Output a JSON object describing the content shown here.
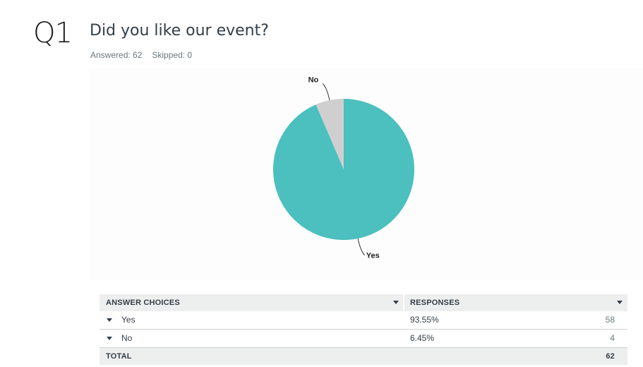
{
  "question": {
    "number": "Q1",
    "title": "Did you like our event?",
    "answered": "Answered: 62",
    "skipped": "Skipped: 0"
  },
  "colors": {
    "yes": "#4cbfbf",
    "no": "#cfcfcf"
  },
  "chart_data": {
    "type": "pie",
    "title": "",
    "categories": [
      "Yes",
      "No"
    ],
    "values": [
      93.55,
      6.45
    ],
    "colors": [
      "#4cbfbf",
      "#cfcfcf"
    ]
  },
  "table": {
    "headers": [
      "ANSWER CHOICES",
      "RESPONSES"
    ],
    "rows": [
      {
        "choice": "Yes",
        "percent": "93.55%",
        "count": "58"
      },
      {
        "choice": "No",
        "percent": "6.45%",
        "count": "4"
      }
    ],
    "total_label": "TOTAL",
    "total_count": "62"
  }
}
